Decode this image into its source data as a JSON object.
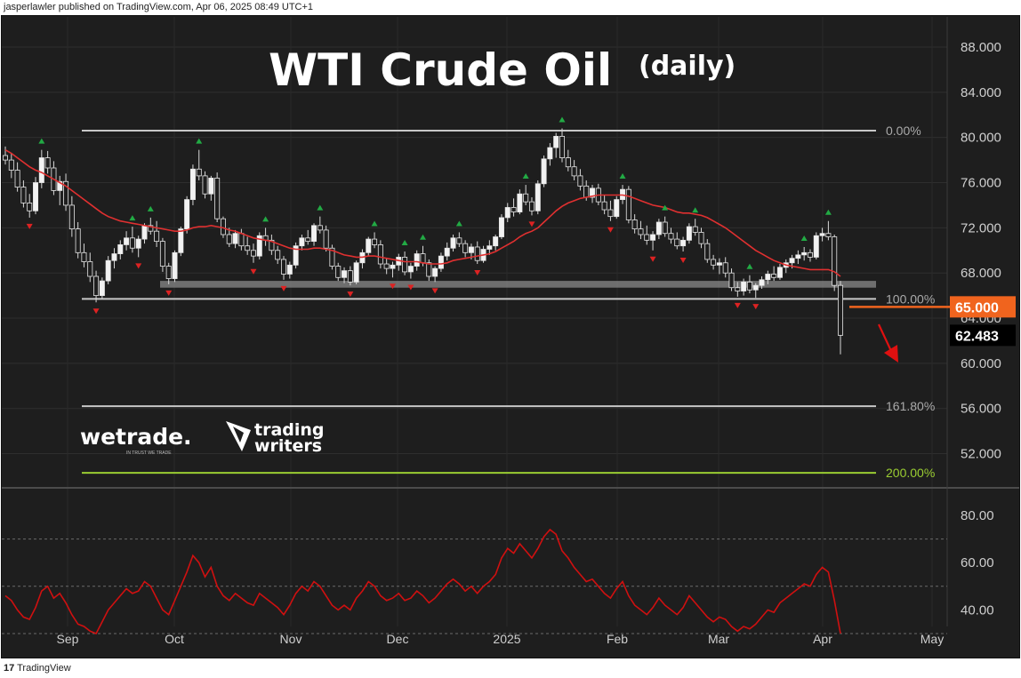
{
  "header": {
    "attribution": "jasperlawler published on TradingView.com, Apr 06, 2025 08:49 UTC+1"
  },
  "footer": {
    "brand_mark": "17",
    "brand": "TradingView"
  },
  "chart_data": {
    "type": "candlestick",
    "title": "WTI Crude Oil",
    "subtitle": "(daily)",
    "price_axis": {
      "ylim": [
        48,
        90
      ],
      "ticks": [
        "88.000",
        "84.000",
        "80.000",
        "76.000",
        "72.000",
        "68.000",
        "64.000",
        "60.000",
        "56.000",
        "52.000"
      ]
    },
    "time_axis": {
      "labels": [
        "Sep",
        "Oct",
        "Nov",
        "Dec",
        "2025",
        "Feb",
        "Mar",
        "Apr",
        "May"
      ]
    },
    "fib_levels": [
      {
        "label": "0.00%",
        "price": 80.6,
        "color": "#c8c8c8"
      },
      {
        "label": "100.00%",
        "price": 65.7,
        "color": "#c8c8c8"
      },
      {
        "label": "161.80%",
        "price": 56.2,
        "color": "#c8c8c8"
      },
      {
        "label": "200.00%",
        "price": 50.3,
        "color": "#9acd32"
      }
    ],
    "support_zone": {
      "from": 66.7,
      "to": 67.3
    },
    "price_labels": [
      {
        "text": "65.000",
        "price": 65.0,
        "bg": "#f0641e",
        "fg": "#ffffff"
      },
      {
        "text": "62.483",
        "price": 62.48,
        "bg": "#000000",
        "fg": "#ffffff"
      }
    ],
    "projection_arrow": {
      "color": "#e01010"
    },
    "moving_average": {
      "color": "#e03030"
    },
    "candles": [
      [
        78.4,
        79.2,
        77.6,
        78.0
      ],
      [
        78.0,
        78.6,
        76.4,
        77.1
      ],
      [
        77.1,
        77.8,
        75.2,
        75.6
      ],
      [
        75.6,
        76.2,
        73.8,
        74.2
      ],
      [
        74.2,
        75.0,
        72.9,
        73.5
      ],
      [
        73.5,
        76.5,
        73.2,
        76.0
      ],
      [
        76.0,
        78.9,
        75.5,
        78.2
      ],
      [
        78.2,
        78.8,
        76.8,
        77.3
      ],
      [
        77.3,
        77.9,
        74.9,
        75.3
      ],
      [
        75.3,
        76.6,
        74.0,
        76.1
      ],
      [
        76.1,
        76.8,
        73.5,
        74.0
      ],
      [
        74.0,
        74.8,
        71.2,
        71.9
      ],
      [
        71.9,
        72.5,
        69.3,
        69.8
      ],
      [
        69.8,
        70.6,
        68.5,
        69.0
      ],
      [
        69.0,
        69.8,
        67.2,
        67.7
      ],
      [
        67.7,
        68.2,
        65.4,
        66.0
      ],
      [
        66.0,
        67.6,
        65.7,
        67.3
      ],
      [
        67.3,
        69.5,
        67.0,
        69.1
      ],
      [
        69.1,
        70.2,
        68.4,
        69.7
      ],
      [
        69.7,
        70.9,
        69.2,
        70.5
      ],
      [
        70.5,
        71.7,
        70.0,
        71.1
      ],
      [
        71.1,
        72.1,
        69.8,
        70.2
      ],
      [
        70.2,
        71.3,
        69.4,
        71.0
      ],
      [
        71.0,
        72.4,
        70.6,
        72.2
      ],
      [
        72.2,
        72.9,
        71.4,
        71.7
      ],
      [
        71.7,
        72.6,
        70.3,
        70.8
      ],
      [
        70.8,
        71.1,
        68.1,
        68.6
      ],
      [
        68.6,
        68.9,
        67.0,
        67.5
      ],
      [
        67.5,
        70.0,
        67.2,
        69.8
      ],
      [
        69.8,
        72.1,
        69.5,
        71.9
      ],
      [
        71.9,
        74.8,
        71.5,
        74.5
      ],
      [
        74.5,
        77.6,
        74.0,
        77.2
      ],
      [
        77.2,
        78.9,
        76.2,
        76.6
      ],
      [
        76.6,
        77.0,
        74.6,
        75.0
      ],
      [
        75.0,
        76.6,
        74.4,
        76.4
      ],
      [
        76.4,
        76.9,
        72.5,
        72.8
      ],
      [
        72.8,
        73.0,
        71.1,
        71.4
      ],
      [
        71.4,
        72.0,
        70.3,
        70.6
      ],
      [
        70.6,
        71.8,
        70.2,
        71.5
      ],
      [
        71.5,
        71.9,
        70.0,
        70.4
      ],
      [
        70.4,
        71.2,
        69.6,
        70.0
      ],
      [
        70.0,
        70.6,
        68.9,
        69.5
      ],
      [
        69.5,
        71.6,
        69.2,
        71.3
      ],
      [
        71.3,
        72.0,
        70.4,
        70.9
      ],
      [
        70.9,
        71.4,
        69.6,
        70.0
      ],
      [
        70.0,
        70.4,
        68.8,
        69.2
      ],
      [
        69.2,
        69.5,
        67.4,
        67.9
      ],
      [
        67.9,
        69.0,
        67.5,
        68.7
      ],
      [
        68.7,
        70.7,
        68.4,
        70.4
      ],
      [
        70.4,
        71.4,
        70.0,
        71.1
      ],
      [
        71.1,
        71.8,
        70.5,
        70.8
      ],
      [
        70.8,
        72.4,
        70.4,
        72.2
      ],
      [
        72.2,
        73.0,
        71.5,
        71.8
      ],
      [
        71.8,
        72.2,
        69.9,
        70.2
      ],
      [
        70.2,
        70.5,
        68.3,
        68.6
      ],
      [
        68.6,
        68.9,
        67.3,
        67.6
      ],
      [
        67.6,
        68.5,
        67.1,
        68.2
      ],
      [
        68.2,
        68.6,
        66.9,
        67.2
      ],
      [
        67.2,
        69.1,
        67.0,
        68.9
      ],
      [
        68.9,
        70.1,
        68.4,
        69.8
      ],
      [
        69.8,
        71.2,
        69.5,
        71.0
      ],
      [
        71.0,
        71.6,
        70.2,
        70.5
      ],
      [
        70.5,
        70.9,
        68.4,
        68.8
      ],
      [
        68.8,
        69.3,
        67.9,
        68.4
      ],
      [
        68.4,
        69.0,
        67.6,
        68.7
      ],
      [
        68.7,
        69.7,
        68.2,
        69.4
      ],
      [
        69.4,
        69.9,
        67.8,
        68.1
      ],
      [
        68.1,
        68.9,
        67.5,
        68.6
      ],
      [
        68.6,
        70.0,
        68.2,
        69.7
      ],
      [
        69.7,
        70.4,
        68.6,
        68.9
      ],
      [
        68.9,
        69.2,
        67.3,
        67.7
      ],
      [
        67.7,
        68.6,
        67.2,
        68.4
      ],
      [
        68.4,
        69.8,
        68.1,
        69.5
      ],
      [
        69.5,
        70.7,
        69.1,
        70.2
      ],
      [
        70.2,
        71.4,
        69.9,
        71.1
      ],
      [
        71.1,
        71.6,
        70.3,
        70.6
      ],
      [
        70.6,
        70.9,
        69.4,
        69.8
      ],
      [
        69.8,
        70.6,
        69.2,
        70.3
      ],
      [
        70.3,
        70.8,
        68.8,
        69.1
      ],
      [
        69.1,
        70.4,
        68.9,
        70.1
      ],
      [
        70.1,
        70.9,
        69.6,
        70.4
      ],
      [
        70.4,
        71.4,
        70.0,
        71.2
      ],
      [
        71.2,
        73.2,
        71.0,
        72.9
      ],
      [
        72.9,
        74.2,
        72.5,
        73.8
      ],
      [
        73.8,
        74.6,
        73.0,
        73.4
      ],
      [
        73.4,
        75.4,
        73.2,
        75.0
      ],
      [
        75.0,
        75.8,
        74.0,
        74.3
      ],
      [
        74.3,
        74.7,
        73.1,
        73.5
      ],
      [
        73.5,
        76.2,
        73.2,
        75.9
      ],
      [
        75.9,
        78.4,
        75.6,
        78.1
      ],
      [
        78.1,
        79.5,
        77.5,
        79.1
      ],
      [
        79.1,
        80.4,
        78.2,
        80.1
      ],
      [
        80.1,
        80.8,
        77.8,
        78.2
      ],
      [
        78.2,
        78.9,
        77.0,
        77.4
      ],
      [
        77.4,
        78.0,
        76.2,
        76.6
      ],
      [
        76.6,
        77.2,
        75.3,
        75.7
      ],
      [
        75.7,
        76.2,
        74.4,
        74.7
      ],
      [
        74.7,
        75.8,
        74.2,
        75.5
      ],
      [
        75.5,
        75.9,
        74.0,
        74.3
      ],
      [
        74.3,
        74.9,
        73.2,
        73.6
      ],
      [
        73.6,
        74.4,
        72.6,
        73.0
      ],
      [
        73.0,
        74.8,
        72.8,
        74.5
      ],
      [
        74.5,
        75.8,
        74.1,
        75.4
      ],
      [
        75.4,
        75.7,
        72.4,
        72.7
      ],
      [
        72.7,
        73.2,
        71.5,
        71.9
      ],
      [
        71.9,
        72.6,
        71.0,
        71.4
      ],
      [
        71.4,
        72.2,
        70.5,
        70.9
      ],
      [
        70.9,
        71.7,
        70.0,
        71.4
      ],
      [
        71.4,
        72.8,
        71.0,
        72.5
      ],
      [
        72.5,
        73.0,
        71.2,
        71.5
      ],
      [
        71.5,
        72.0,
        70.6,
        71.0
      ],
      [
        71.0,
        71.6,
        70.1,
        70.4
      ],
      [
        70.4,
        71.2,
        69.9,
        70.9
      ],
      [
        70.9,
        72.4,
        70.6,
        72.1
      ],
      [
        72.1,
        72.8,
        71.3,
        71.6
      ],
      [
        71.6,
        72.0,
        70.2,
        70.6
      ],
      [
        70.6,
        71.0,
        68.9,
        69.2
      ],
      [
        69.2,
        69.6,
        68.3,
        68.7
      ],
      [
        68.7,
        69.3,
        67.9,
        68.9
      ],
      [
        68.9,
        69.4,
        67.6,
        68.0
      ],
      [
        68.0,
        68.4,
        66.4,
        66.7
      ],
      [
        66.7,
        67.2,
        65.9,
        66.4
      ],
      [
        66.4,
        67.5,
        66.0,
        67.2
      ],
      [
        67.2,
        67.8,
        66.2,
        66.5
      ],
      [
        66.5,
        67.1,
        65.8,
        66.9
      ],
      [
        66.9,
        67.7,
        66.6,
        67.4
      ],
      [
        67.4,
        68.2,
        67.0,
        67.9
      ],
      [
        67.9,
        68.6,
        67.3,
        67.6
      ],
      [
        67.6,
        68.8,
        67.4,
        68.5
      ],
      [
        68.5,
        69.2,
        68.0,
        68.9
      ],
      [
        68.9,
        69.6,
        68.4,
        69.3
      ],
      [
        69.3,
        70.0,
        68.8,
        69.6
      ],
      [
        69.6,
        70.3,
        69.1,
        69.8
      ],
      [
        69.8,
        70.1,
        69.0,
        69.4
      ],
      [
        69.4,
        71.6,
        69.2,
        71.3
      ],
      [
        71.3,
        72.0,
        70.8,
        71.5
      ],
      [
        71.5,
        72.6,
        70.9,
        71.2
      ],
      [
        71.2,
        71.4,
        66.4,
        66.9
      ],
      [
        66.9,
        67.3,
        60.8,
        62.48
      ]
    ],
    "ma_values": [
      78.9,
      78.6,
      78.2,
      77.8,
      77.4,
      77.1,
      76.9,
      76.6,
      76.3,
      76.0,
      75.7,
      75.3,
      74.9,
      74.5,
      74.1,
      73.7,
      73.3,
      73.0,
      72.8,
      72.6,
      72.5,
      72.4,
      72.3,
      72.2,
      72.1,
      72.0,
      71.9,
      71.8,
      71.7,
      71.7,
      71.8,
      72.0,
      72.1,
      72.1,
      72.2,
      72.1,
      72.0,
      71.8,
      71.7,
      71.5,
      71.3,
      71.1,
      71.0,
      70.9,
      70.8,
      70.6,
      70.4,
      70.2,
      70.1,
      70.1,
      70.1,
      70.2,
      70.2,
      70.1,
      70.0,
      69.8,
      69.6,
      69.5,
      69.4,
      69.4,
      69.5,
      69.5,
      69.4,
      69.3,
      69.2,
      69.1,
      69.0,
      69.0,
      69.0,
      68.9,
      68.8,
      68.8,
      68.8,
      68.9,
      69.1,
      69.2,
      69.3,
      69.4,
      69.5,
      69.6,
      69.7,
      69.9,
      70.2,
      70.5,
      70.8,
      71.2,
      71.5,
      71.7,
      72.0,
      72.5,
      73.0,
      73.5,
      73.9,
      74.2,
      74.4,
      74.6,
      74.7,
      74.8,
      74.9,
      74.9,
      74.9,
      74.9,
      74.9,
      74.8,
      74.6,
      74.4,
      74.2,
      74.0,
      73.9,
      73.8,
      73.6,
      73.4,
      73.3,
      73.3,
      73.2,
      73.1,
      72.9,
      72.6,
      72.3,
      72.0,
      71.6,
      71.2,
      70.8,
      70.4,
      70.0,
      69.7,
      69.4,
      69.1,
      68.9,
      68.7,
      68.6,
      68.5,
      68.4,
      68.3,
      68.3,
      68.3,
      68.3,
      68.1,
      67.7
    ],
    "rsi": {
      "color": "#d01010",
      "ylim": [
        25,
        85
      ],
      "ticks": [
        "80.00",
        "60.00",
        "40.00"
      ],
      "levels": [
        70,
        50,
        30
      ],
      "values": [
        46,
        44,
        40,
        37,
        36,
        41,
        48,
        50,
        45,
        47,
        43,
        38,
        34,
        33,
        31,
        30,
        35,
        40,
        43,
        46,
        49,
        47,
        48,
        52,
        50,
        45,
        40,
        38,
        44,
        50,
        56,
        63,
        60,
        54,
        58,
        50,
        46,
        44,
        47,
        45,
        43,
        42,
        47,
        45,
        43,
        41,
        38,
        42,
        47,
        50,
        48,
        52,
        50,
        46,
        42,
        40,
        42,
        40,
        45,
        48,
        52,
        50,
        46,
        44,
        45,
        47,
        44,
        45,
        48,
        46,
        43,
        45,
        48,
        51,
        53,
        51,
        48,
        50,
        47,
        50,
        52,
        55,
        62,
        66,
        64,
        68,
        65,
        62,
        66,
        71,
        74,
        72,
        65,
        62,
        58,
        55,
        52,
        53,
        50,
        47,
        45,
        49,
        52,
        46,
        42,
        40,
        38,
        41,
        45,
        42,
        40,
        38,
        41,
        46,
        43,
        40,
        37,
        35,
        37,
        36,
        33,
        31,
        33,
        32,
        34,
        37,
        40,
        39,
        43,
        45,
        47,
        49,
        51,
        50,
        55,
        58,
        56,
        44,
        30
      ]
    }
  },
  "watermarks": {
    "brand1": "wetrade.",
    "brand1_tag": "IN TRUST WE TRADE",
    "brand2_line1": "trading",
    "brand2_line2": "writers"
  }
}
